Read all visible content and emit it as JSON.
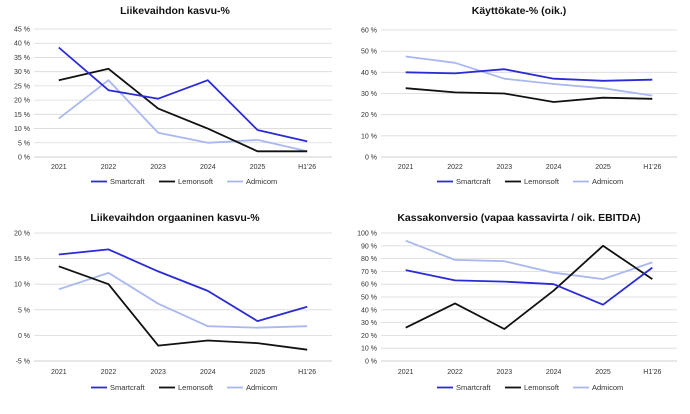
{
  "colors": {
    "Smartcraft": "#2b2bd6",
    "Lemonsoft": "#111111",
    "Admicom": "#a9b8f0"
  },
  "chart_data": [
    {
      "type": "line",
      "title": "Liikevaihdon kasvu-%",
      "x": [
        "2021",
        "2022",
        "2023",
        "2024",
        "2025",
        "H1'26"
      ],
      "ylim": [
        0,
        45
      ],
      "ytick_values": [
        0,
        5,
        10,
        15,
        20,
        25,
        30,
        35,
        40,
        45
      ],
      "ytick_labels": [
        "0 %",
        "5 %",
        "10 %",
        "15 %",
        "20 %",
        "25 %",
        "30 %",
        "35 %",
        "40 %",
        "45 %"
      ],
      "grid": true,
      "legend": "bottom",
      "series": [
        {
          "name": "Smartcraft",
          "values": [
            38.5,
            23.5,
            20.5,
            27.0,
            9.5,
            5.5
          ]
        },
        {
          "name": "Lemonsoft",
          "values": [
            27.0,
            31.0,
            17.0,
            10.0,
            2.0,
            2.0
          ]
        },
        {
          "name": "Admicom",
          "values": [
            13.5,
            27.0,
            8.5,
            5.0,
            6.0,
            2.0
          ]
        }
      ]
    },
    {
      "type": "line",
      "title": "Käyttökate-% (oik.)",
      "x": [
        "2021",
        "2022",
        "2023",
        "2024",
        "2025",
        "H1'26"
      ],
      "ylim": [
        0,
        60
      ],
      "ytick_values": [
        0,
        10,
        20,
        30,
        40,
        50,
        60
      ],
      "ytick_labels": [
        "0 %",
        "10 %",
        "20 %",
        "30 %",
        "40 %",
        "50 %",
        "60 %"
      ],
      "grid": true,
      "legend": "bottom",
      "series": [
        {
          "name": "Smartcraft",
          "values": [
            40.0,
            39.5,
            41.5,
            37.0,
            36.0,
            36.5
          ]
        },
        {
          "name": "Lemonsoft",
          "values": [
            32.5,
            30.5,
            30.0,
            26.0,
            28.0,
            27.5
          ]
        },
        {
          "name": "Admicom",
          "values": [
            47.5,
            44.5,
            37.0,
            34.5,
            32.5,
            29.0
          ]
        }
      ]
    },
    {
      "type": "line",
      "title": "Liikevaihdon orgaaninen kasvu-%",
      "x": [
        "2021",
        "2022",
        "2023",
        "2024",
        "2025",
        "H1'26"
      ],
      "ylim": [
        -5,
        20
      ],
      "ytick_values": [
        -5,
        0,
        5,
        10,
        15,
        20
      ],
      "ytick_labels": [
        "-5 %",
        "0 %",
        "5 %",
        "10 %",
        "15 %",
        "20 %"
      ],
      "grid": true,
      "legend": "bottom",
      "series": [
        {
          "name": "Smartcraft",
          "values": [
            15.8,
            16.8,
            12.5,
            8.7,
            2.8,
            5.6
          ]
        },
        {
          "name": "Lemonsoft",
          "values": [
            13.5,
            10.0,
            -2.0,
            -1.0,
            -1.5,
            -2.8
          ]
        },
        {
          "name": "Admicom",
          "values": [
            9.0,
            12.2,
            6.2,
            1.8,
            1.5,
            1.8
          ]
        }
      ]
    },
    {
      "type": "line",
      "title": "Kassakonversio (vapaa kassavirta / oik. EBITDA)",
      "x": [
        "2021",
        "2022",
        "2023",
        "2024",
        "2025",
        "H1'26"
      ],
      "ylim": [
        0,
        100
      ],
      "ytick_values": [
        0,
        10,
        20,
        30,
        40,
        50,
        60,
        70,
        80,
        90,
        100
      ],
      "ytick_labels": [
        "0 %",
        "10 %",
        "20 %",
        "30 %",
        "40 %",
        "50 %",
        "60 %",
        "70 %",
        "80 %",
        "90 %",
        "100 %"
      ],
      "grid": true,
      "legend": "bottom",
      "series": [
        {
          "name": "Smartcraft",
          "values": [
            71,
            63,
            62,
            60,
            44,
            73
          ]
        },
        {
          "name": "Lemonsoft",
          "values": [
            26,
            45,
            25,
            55,
            90,
            64
          ]
        },
        {
          "name": "Admicom",
          "values": [
            94,
            79,
            78,
            69,
            64,
            77
          ]
        }
      ]
    }
  ]
}
